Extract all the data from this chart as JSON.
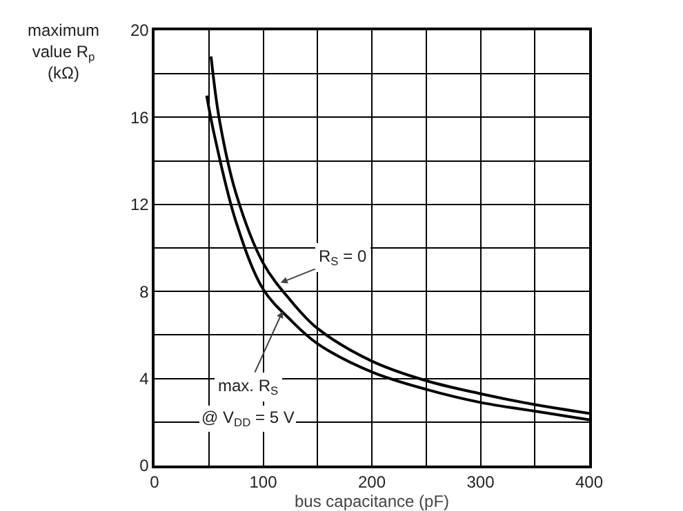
{
  "chart_data": {
    "type": "line",
    "xlabel": "bus capacitance (pF)",
    "ylabel": "maximum\nvalue R$_{p}$\n(kΩ)",
    "series": [
      {
        "color": "#000000",
        "x": [
          52,
          60,
          75,
          100,
          125,
          150,
          200,
          250,
          300,
          350,
          400
        ],
        "values": [
          18.8,
          15.8,
          12.5,
          9.3,
          7.6,
          6.3,
          4.8,
          3.9,
          3.3,
          2.8,
          2.4
        ]
      },
      {
        "color": "#000000",
        "x": [
          48,
          55,
          75,
          100,
          125,
          150,
          200,
          250,
          300,
          350,
          400
        ],
        "values": [
          17.0,
          15.2,
          11.2,
          8.1,
          6.7,
          5.6,
          4.3,
          3.5,
          2.9,
          2.5,
          2.1
        ]
      }
    ],
    "annotations": [
      {
        "text": "R$_{S}$ = 0",
        "x": 116,
        "y": 8.4
      },
      {
        "text": "max. R$_{S}$",
        "x": 118,
        "y": 7.1
      },
      "@ V$_{DD}$ = 5 V"
    ],
    "xlim": [
      0,
      400
    ],
    "xticks": [
      0,
      {
        "value": 50,
        "label": null
      },
      100,
      {
        "value": 150,
        "label": null
      },
      200,
      {
        "value": 250,
        "label": null
      },
      300,
      {
        "value": 350,
        "label": null
      },
      400
    ],
    "ylim": [
      0,
      20
    ],
    "yticks": [
      0,
      {
        "value": 2,
        "label": null
      },
      4,
      {
        "value": 6,
        "label": null
      },
      8,
      {
        "value": 10,
        "label": null
      },
      12,
      {
        "value": 14,
        "label": null
      },
      16,
      {
        "value": 18,
        "label": null
      },
      20
    ],
    "grid": true,
    "legend": false,
    "marker": "none",
    "line_style": "solid"
  }
}
